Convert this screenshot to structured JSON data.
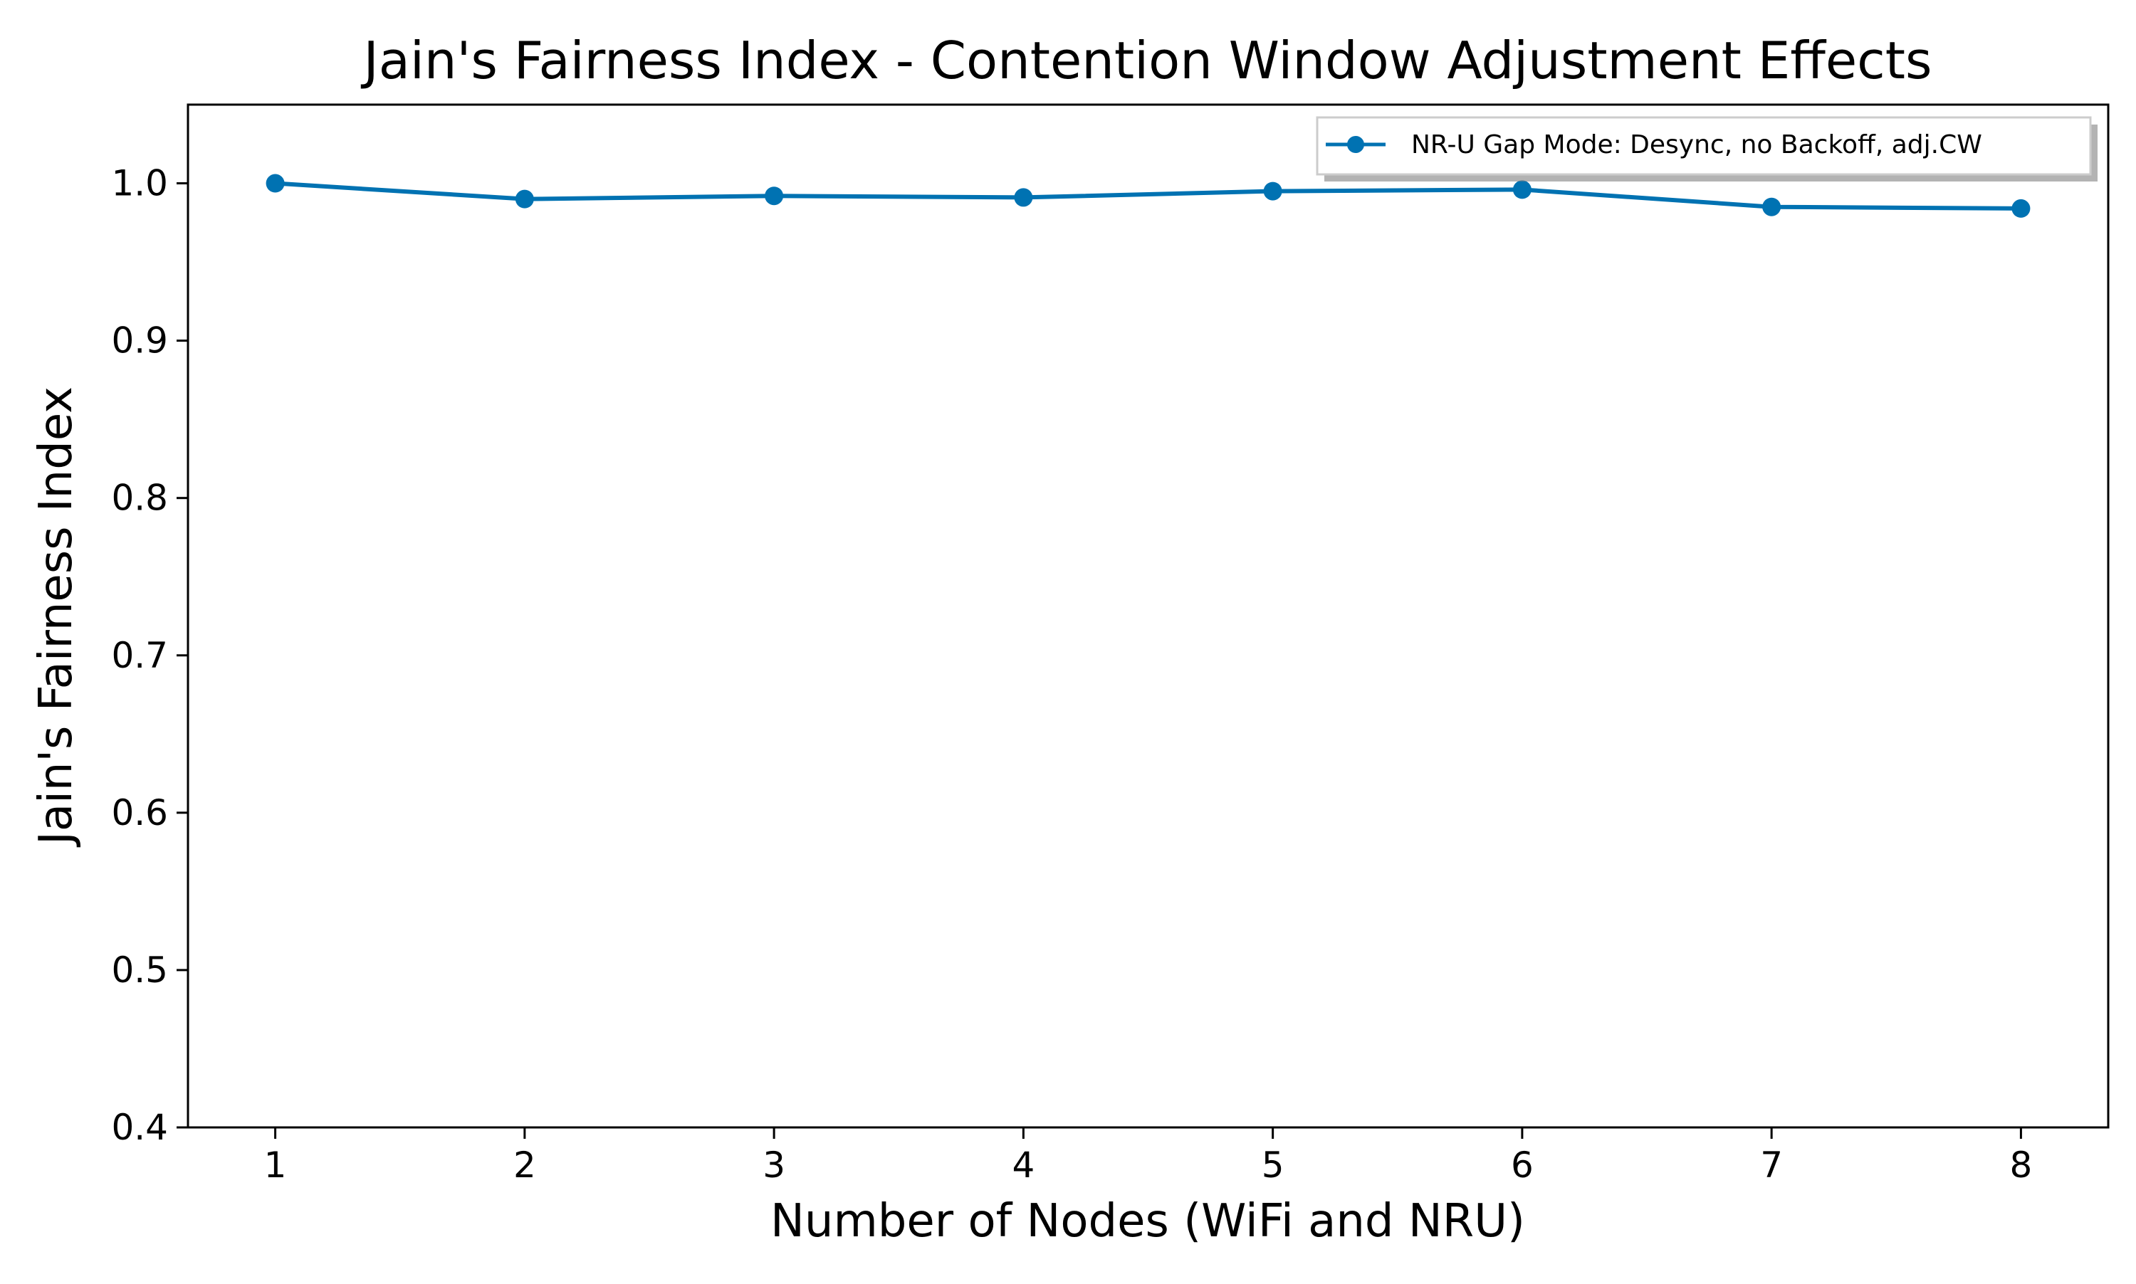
{
  "chart_data": {
    "type": "line",
    "title": "Jain's Fairness Index - Contention Window Adjustment Effects",
    "xlabel": "Number of Nodes (WiFi and NRU)",
    "ylabel": "Jain's Fairness Index",
    "x": [
      1,
      2,
      3,
      4,
      5,
      6,
      7,
      8
    ],
    "xlim": [
      0.65,
      8.35
    ],
    "ylim": [
      0.4,
      1.05
    ],
    "xticks": [
      "1",
      "2",
      "3",
      "4",
      "5",
      "6",
      "7",
      "8"
    ],
    "yticks": [
      "0.4",
      "0.5",
      "0.6",
      "0.7",
      "0.8",
      "0.9",
      "1.0"
    ],
    "grid": false,
    "legend_position": "top-right",
    "series": [
      {
        "name": "NR-U Gap Mode: Desync, no Backoff, adj.CW",
        "color": "#0072b2",
        "marker": "circle",
        "values": [
          1.0,
          0.99,
          0.992,
          0.991,
          0.995,
          0.996,
          0.985,
          0.984
        ]
      }
    ]
  }
}
